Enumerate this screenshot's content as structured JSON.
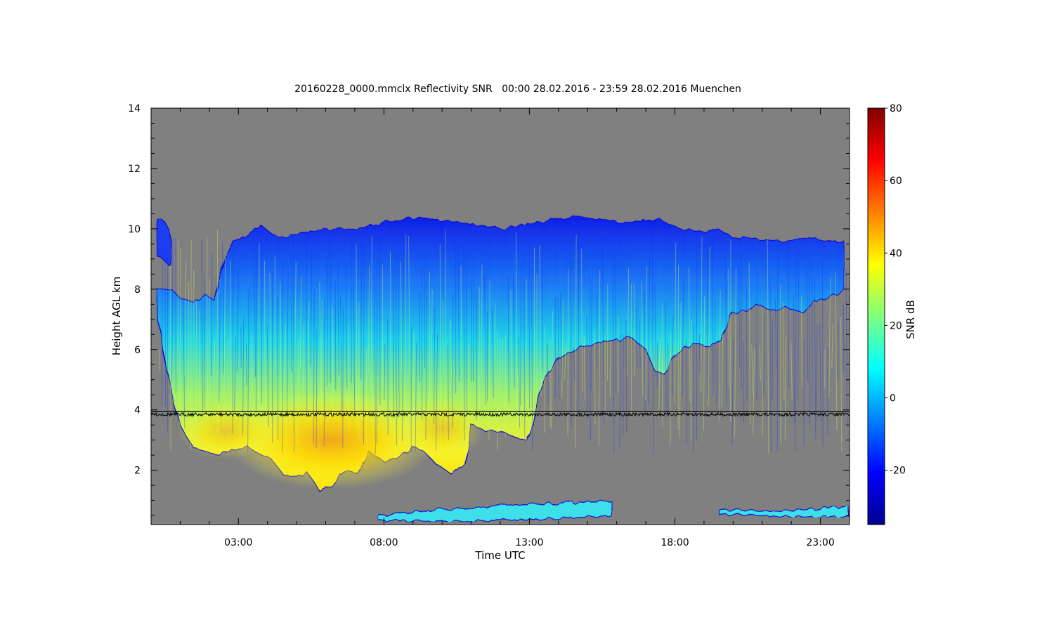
{
  "chart_data": {
    "type": "heatmap",
    "title": "20160228_0000.mmclx Reflectivity SNR   00:00 28.02.2016 - 23:59 28.02.2016 Muenchen",
    "xlabel": "Time UTC",
    "ylabel": "Height AGL km",
    "x_unit": "hours UTC",
    "xlim": [
      0,
      24
    ],
    "ylim": [
      0.2,
      14
    ],
    "x_ticks": [
      {
        "value": 3,
        "label": "03:00"
      },
      {
        "value": 8,
        "label": "08:00"
      },
      {
        "value": 13,
        "label": "13:00"
      },
      {
        "value": 18,
        "label": "18:00"
      },
      {
        "value": 23,
        "label": "23:00"
      }
    ],
    "y_ticks": [
      2,
      4,
      6,
      8,
      10,
      12,
      14
    ],
    "colorbar": {
      "label": "SNR dB",
      "range": [
        -35,
        80
      ],
      "ticks": [
        -20,
        0,
        20,
        40,
        60,
        80
      ],
      "colormap": "jet"
    },
    "background_color": "#808080",
    "reference_line": {
      "height_km": 3.95,
      "color": "#000000"
    },
    "noisy_trace": {
      "height_km": 3.85,
      "color": "#000000"
    },
    "cloud_regions": [
      {
        "name": "main cloud",
        "snr_range_db": [
          -30,
          50
        ],
        "top_km": [
          [
            0.2,
            8.0
          ],
          [
            0.7,
            8.0
          ],
          [
            1.0,
            7.7
          ],
          [
            1.4,
            7.6
          ],
          [
            1.9,
            7.8
          ],
          [
            2.2,
            7.6
          ],
          [
            2.5,
            9.0
          ],
          [
            2.8,
            9.6
          ],
          [
            3.3,
            9.8
          ],
          [
            3.8,
            10.1
          ],
          [
            4.2,
            9.8
          ],
          [
            4.6,
            9.7
          ],
          [
            5.3,
            9.9
          ],
          [
            6.2,
            10.0
          ],
          [
            7.0,
            10.0
          ],
          [
            8.0,
            10.2
          ],
          [
            8.5,
            10.3
          ],
          [
            9.2,
            10.4
          ],
          [
            9.8,
            10.3
          ],
          [
            10.6,
            10.2
          ],
          [
            11.4,
            10.1
          ],
          [
            12.1,
            10.0
          ],
          [
            12.6,
            10.1
          ],
          [
            13.2,
            10.2
          ],
          [
            13.8,
            10.3
          ],
          [
            14.6,
            10.4
          ],
          [
            15.4,
            10.3
          ],
          [
            16.2,
            10.2
          ],
          [
            16.9,
            10.3
          ],
          [
            17.5,
            10.3
          ],
          [
            18.2,
            10.0
          ],
          [
            19.0,
            9.9
          ],
          [
            19.5,
            10.0
          ],
          [
            20.0,
            9.7
          ],
          [
            20.6,
            9.7
          ],
          [
            21.2,
            9.6
          ],
          [
            21.9,
            9.6
          ],
          [
            22.6,
            9.7
          ],
          [
            23.2,
            9.6
          ],
          [
            23.8,
            9.6
          ]
        ],
        "base_km": [
          [
            0.2,
            7.0
          ],
          [
            0.6,
            5.0
          ],
          [
            1.0,
            3.5
          ],
          [
            1.4,
            2.8
          ],
          [
            1.9,
            2.6
          ],
          [
            2.4,
            2.5
          ],
          [
            2.9,
            2.7
          ],
          [
            3.3,
            2.8
          ],
          [
            3.6,
            2.6
          ],
          [
            4.1,
            2.4
          ],
          [
            4.6,
            1.8
          ],
          [
            5.0,
            1.8
          ],
          [
            5.4,
            1.9
          ],
          [
            5.8,
            1.3
          ],
          [
            6.2,
            1.5
          ],
          [
            6.7,
            2.0
          ],
          [
            7.1,
            1.9
          ],
          [
            7.5,
            2.6
          ],
          [
            8.0,
            2.3
          ],
          [
            8.6,
            2.5
          ],
          [
            9.0,
            2.8
          ],
          [
            9.4,
            2.6
          ],
          [
            9.8,
            2.2
          ],
          [
            10.3,
            1.9
          ],
          [
            10.8,
            2.2
          ],
          [
            11.0,
            3.5
          ],
          [
            11.5,
            3.3
          ],
          [
            12.0,
            3.3
          ],
          [
            12.5,
            3.1
          ],
          [
            12.9,
            3.0
          ],
          [
            13.1,
            3.5
          ],
          [
            13.3,
            4.5
          ],
          [
            13.5,
            5.0
          ],
          [
            14.0,
            5.7
          ],
          [
            14.6,
            6.0
          ],
          [
            15.2,
            6.2
          ],
          [
            15.8,
            6.3
          ],
          [
            16.5,
            6.4
          ],
          [
            17.0,
            6.0
          ],
          [
            17.3,
            5.3
          ],
          [
            17.6,
            5.2
          ],
          [
            18.0,
            5.8
          ],
          [
            18.6,
            6.2
          ],
          [
            19.2,
            6.1
          ],
          [
            19.6,
            6.3
          ],
          [
            20.0,
            7.2
          ],
          [
            20.4,
            7.3
          ],
          [
            20.8,
            7.5
          ],
          [
            21.3,
            7.3
          ],
          [
            21.8,
            7.4
          ],
          [
            22.4,
            7.2
          ],
          [
            22.8,
            7.6
          ],
          [
            23.3,
            7.7
          ],
          [
            23.8,
            8.0
          ]
        ],
        "core_snr_db": 40
      },
      {
        "name": "high cloud patch",
        "snr_range_db": [
          -30,
          -10
        ],
        "top_km": [
          [
            0.2,
            10.3
          ],
          [
            0.4,
            10.3
          ],
          [
            0.6,
            10.0
          ],
          [
            0.7,
            9.6
          ]
        ],
        "base_km": [
          [
            0.2,
            9.1
          ],
          [
            0.4,
            9.0
          ],
          [
            0.6,
            8.8
          ],
          [
            0.7,
            9.2
          ]
        ]
      },
      {
        "name": "boundary layer echoes 07:30-15:45",
        "snr_range_db": [
          -20,
          10
        ],
        "top_km": [
          [
            7.8,
            0.5
          ],
          [
            10.0,
            0.7
          ],
          [
            12.5,
            0.85
          ],
          [
            14.0,
            0.9
          ],
          [
            15.8,
            1.0
          ]
        ],
        "base_km": [
          [
            7.8,
            0.35
          ],
          [
            10.0,
            0.3
          ],
          [
            12.5,
            0.35
          ],
          [
            14.0,
            0.4
          ],
          [
            15.8,
            0.5
          ]
        ]
      },
      {
        "name": "boundary layer echoes 19:30-24:00",
        "snr_range_db": [
          -20,
          10
        ],
        "top_km": [
          [
            19.5,
            0.7
          ],
          [
            21.0,
            0.65
          ],
          [
            22.5,
            0.7
          ],
          [
            24.0,
            0.8
          ]
        ],
        "base_km": [
          [
            19.5,
            0.55
          ],
          [
            21.0,
            0.5
          ],
          [
            22.5,
            0.45
          ],
          [
            24.0,
            0.45
          ]
        ]
      }
    ]
  }
}
